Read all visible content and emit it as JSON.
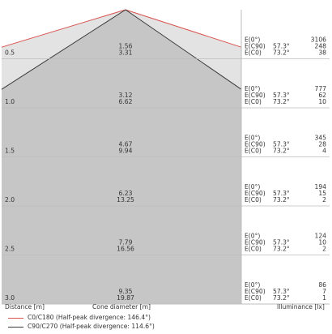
{
  "chart_data": {
    "type": "cone-diagram",
    "colors": {
      "c0c180": "#d9534f",
      "c90c270": "#3a3a3a",
      "fill_outer": "#e3e3e3",
      "fill_inner": "#c6c6c6",
      "grid": "#bdbdbd"
    },
    "divergence_deg": {
      "c0c180": 146.4,
      "c90c270": 114.6
    },
    "rows": [
      {
        "distance": "0.5",
        "diameters": [
          "1.56",
          "3.31"
        ],
        "illuminance": [
          {
            "label": "E(0°)",
            "angle": "",
            "value": "3106"
          },
          {
            "label": "E(C90)",
            "angle": "57.3°",
            "value": "248"
          },
          {
            "label": "E(C0)",
            "angle": "73.2°",
            "value": "38"
          }
        ]
      },
      {
        "distance": "1.0",
        "diameters": [
          "3.12",
          "6.62"
        ],
        "illuminance": [
          {
            "label": "E(0°)",
            "angle": "",
            "value": "777"
          },
          {
            "label": "E(C90)",
            "angle": "57.3°",
            "value": "62"
          },
          {
            "label": "E(C0)",
            "angle": "73.2°",
            "value": "10"
          }
        ]
      },
      {
        "distance": "1.5",
        "diameters": [
          "4.67",
          "9.94"
        ],
        "illuminance": [
          {
            "label": "E(0°)",
            "angle": "",
            "value": "345"
          },
          {
            "label": "E(C90)",
            "angle": "57.3°",
            "value": "28"
          },
          {
            "label": "E(C0)",
            "angle": "73.2°",
            "value": "4"
          }
        ]
      },
      {
        "distance": "2.0",
        "diameters": [
          "6.23",
          "13.25"
        ],
        "illuminance": [
          {
            "label": "E(0°)",
            "angle": "",
            "value": "194"
          },
          {
            "label": "E(C90)",
            "angle": "57.3°",
            "value": "15"
          },
          {
            "label": "E(C0)",
            "angle": "73.2°",
            "value": "2"
          }
        ]
      },
      {
        "distance": "2.5",
        "diameters": [
          "7.79",
          "16.56"
        ],
        "illuminance": [
          {
            "label": "E(0°)",
            "angle": "",
            "value": "124"
          },
          {
            "label": "E(C90)",
            "angle": "57.3°",
            "value": "10"
          },
          {
            "label": "E(C0)",
            "angle": "73.2°",
            "value": "2"
          }
        ]
      },
      {
        "distance": "3.0",
        "diameters": [
          "9.35",
          "19.87"
        ],
        "illuminance": [
          {
            "label": "E(0°)",
            "angle": "",
            "value": "86"
          },
          {
            "label": "E(C90)",
            "angle": "57.3°",
            "value": "7"
          },
          {
            "label": "E(C0)",
            "angle": "73.2°",
            "value": "1"
          }
        ]
      }
    ],
    "footer": {
      "distance_label": "Distance [m]",
      "diameter_label": "Cone diameter [m]",
      "illuminance_label": "Illuminance [lx]"
    },
    "legend": [
      {
        "text": "C0/C180 (Half-peak divergence: 146.4°)",
        "color_key": "c0c180"
      },
      {
        "text": "C90/C270 (Half-peak divergence: 114.6°)",
        "color_key": "c90c270"
      }
    ]
  }
}
